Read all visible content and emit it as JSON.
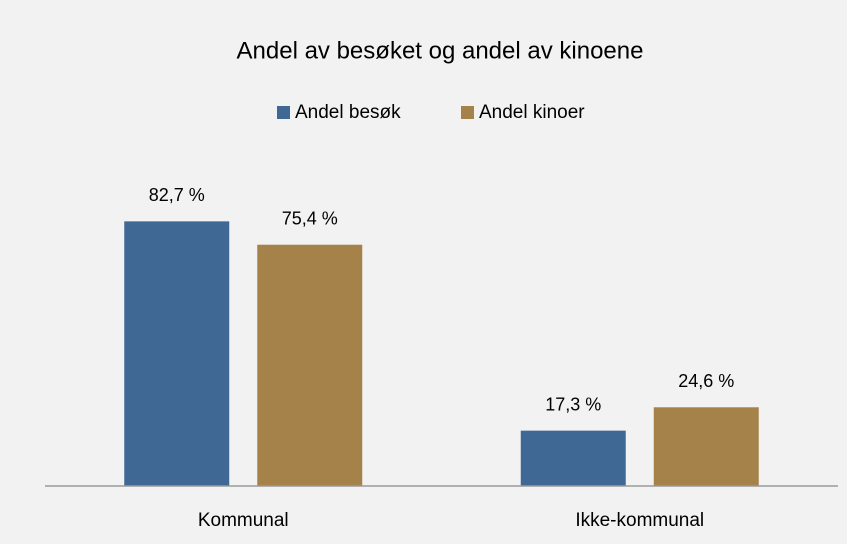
{
  "chart_data": {
    "type": "bar",
    "title": "Andel av besøket og andel av kinoene",
    "categories": [
      "Kommunal",
      "Ikke-kommunal"
    ],
    "series": [
      {
        "name": "Andel besøk",
        "color": "#3f6994",
        "values": [
          82.7,
          17.3
        ],
        "value_labels": [
          "82,7 %",
          "17,3 %"
        ]
      },
      {
        "name": "Andel kinoer",
        "color": "#a5824a",
        "values": [
          75.4,
          24.6
        ],
        "value_labels": [
          "75,4 %",
          "24,6 %"
        ]
      }
    ],
    "legend": "top"
  }
}
